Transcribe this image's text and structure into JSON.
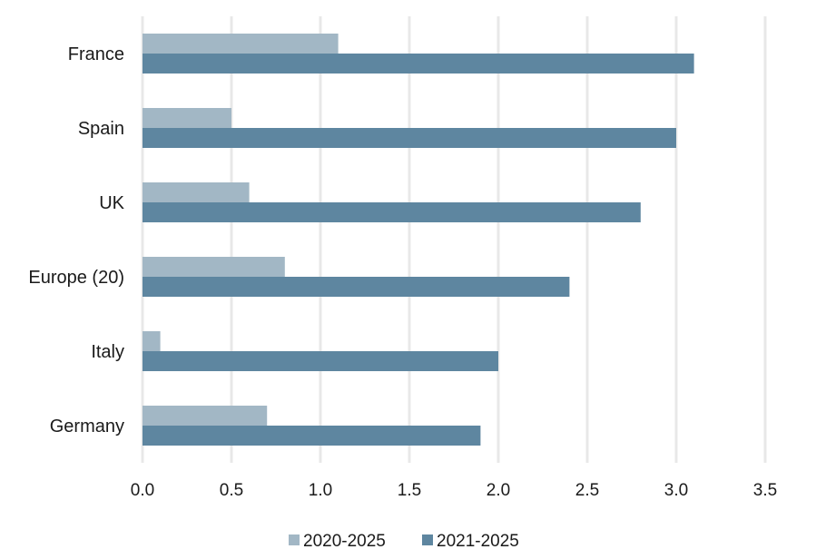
{
  "chart_data": {
    "type": "bar",
    "orientation": "horizontal",
    "categories": [
      "France",
      "Spain",
      "UK",
      "Europe (20)",
      "Italy",
      "Germany"
    ],
    "series": [
      {
        "name": "2020-2025",
        "values": [
          1.1,
          0.5,
          0.6,
          0.8,
          0.1,
          0.7
        ],
        "color": "#a2b7c5"
      },
      {
        "name": "2021-2025",
        "values": [
          3.1,
          3.0,
          2.8,
          2.4,
          2.0,
          1.9
        ],
        "color": "#5e86a0"
      }
    ],
    "xlim": [
      0,
      3.5
    ],
    "xticks": [
      "0.0",
      "0.5",
      "1.0",
      "1.5",
      "2.0",
      "2.5",
      "3.0",
      "3.5"
    ],
    "grid": "vertical",
    "legend": "bottom-center",
    "gridline_color": "#e8e8e8"
  }
}
